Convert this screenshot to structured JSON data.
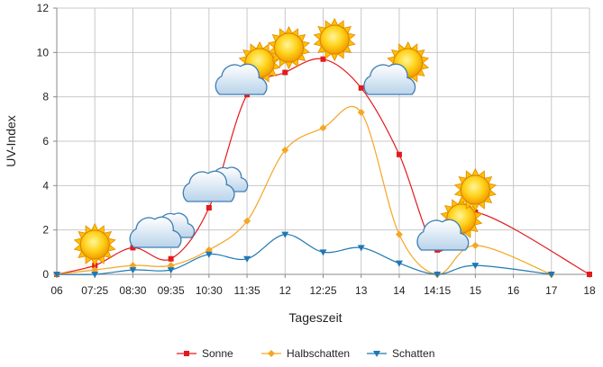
{
  "chart_data": {
    "type": "line",
    "title": "",
    "xlabel": "Tageszeit",
    "ylabel": "UV-Index",
    "ylim": [
      0,
      12
    ],
    "y_ticks": [
      0,
      2,
      4,
      6,
      8,
      10,
      12
    ],
    "x_tick_labels": [
      "06",
      "07:25",
      "08:30",
      "09:35",
      "10:30",
      "11:35",
      "12",
      "12:25",
      "13",
      "14",
      "14:15",
      "15",
      "16",
      "17",
      "18"
    ],
    "grid": true,
    "legend_position": "bottom",
    "series": [
      {
        "name": "Sonne",
        "color": "#e31a1c",
        "marker": "square",
        "values": [
          0,
          0.4,
          1.2,
          0.7,
          3.0,
          8.1,
          9.1,
          9.7,
          8.4,
          5.4,
          1.1,
          2.8,
          null,
          null,
          0
        ]
      },
      {
        "name": "Halbschatten",
        "color": "#f5a623",
        "marker": "diamond",
        "values": [
          0,
          0.2,
          0.4,
          0.4,
          1.1,
          2.4,
          5.6,
          6.6,
          7.3,
          1.8,
          0,
          1.3,
          null,
          0,
          null
        ]
      },
      {
        "name": "Schatten",
        "color": "#1f78b4",
        "marker": "triangle-down",
        "values": [
          0,
          0,
          0.2,
          0.2,
          0.9,
          0.7,
          1.8,
          1.0,
          1.2,
          0.5,
          0,
          0.4,
          null,
          0,
          null
        ]
      }
    ],
    "weather_icons": [
      {
        "x_index": 1,
        "kind": "sun"
      },
      {
        "x_index": 2.7,
        "kind": "cloud"
      },
      {
        "x_index": 4.1,
        "kind": "cloud"
      },
      {
        "x_index": 5.0,
        "kind": "sun-cloud"
      },
      {
        "x_index": 6.1,
        "kind": "sun"
      },
      {
        "x_index": 7.3,
        "kind": "sun"
      },
      {
        "x_index": 8.9,
        "kind": "sun-cloud"
      },
      {
        "x_index": 10.3,
        "kind": "sun-cloud"
      },
      {
        "x_index": 11.0,
        "kind": "sun"
      }
    ]
  }
}
